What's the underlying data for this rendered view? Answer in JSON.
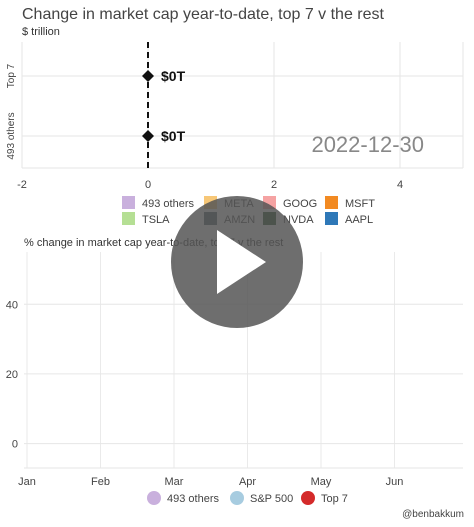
{
  "credit": "@benbakkum",
  "chart_data": [
    {
      "type": "scatter",
      "title": "Change in market cap year-to-date, top 7 v the rest",
      "subtitle": "$ trillion",
      "frame_label": "2022-12-30",
      "categories": [
        "Top 7",
        "493 others"
      ],
      "x_ticks": [
        "-2",
        "0",
        "2",
        "4"
      ],
      "xlim": [
        -2,
        5
      ],
      "reference_line_x": 0,
      "points": [
        {
          "category": "Top 7",
          "x": 0,
          "label": "$0T"
        },
        {
          "category": "493 others",
          "x": 0,
          "label": "$0T"
        }
      ],
      "legend": [
        {
          "name": "493 others",
          "color": "#c9b0dd"
        },
        {
          "name": "META",
          "color": "#f7c777"
        },
        {
          "name": "GOOG",
          "color": "#f5a3a3"
        },
        {
          "name": "MSFT",
          "color": "#f28a22"
        },
        {
          "name": "TSLA",
          "color": "#b5df94"
        },
        {
          "name": "AMZN",
          "color": "#4d5d66"
        },
        {
          "name": "NVDA",
          "color": "#1d4d1d"
        },
        {
          "name": "AAPL",
          "color": "#2e78b8"
        }
      ],
      "grid": true,
      "legend_position": "bottom"
    },
    {
      "type": "line",
      "title": "% change in market cap year-to-date, top 7 v the rest",
      "x_ticks": [
        "Jan",
        "Feb",
        "Mar",
        "Apr",
        "May",
        "Jun"
      ],
      "y_ticks": [
        "0",
        "20",
        "40"
      ],
      "ylim": [
        -7,
        55
      ],
      "series": [
        {
          "name": "493 others",
          "color": "#c9b0dd",
          "values": []
        },
        {
          "name": "S&P 500",
          "color": "#a7cce0",
          "values": []
        },
        {
          "name": "Top 7",
          "color": "#d42a2a",
          "values": []
        }
      ],
      "grid": true,
      "legend_position": "bottom"
    }
  ],
  "play_button": {
    "icon": "play-icon",
    "background": "#555555",
    "opacity": 0.85
  }
}
